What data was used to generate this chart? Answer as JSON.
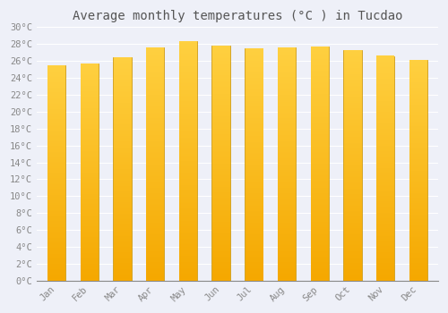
{
  "title": "Average monthly temperatures (°C ) in Tucdao",
  "months": [
    "Jan",
    "Feb",
    "Mar",
    "Apr",
    "May",
    "Jun",
    "Jul",
    "Aug",
    "Sep",
    "Oct",
    "Nov",
    "Dec"
  ],
  "values": [
    25.5,
    25.7,
    26.4,
    27.6,
    28.3,
    27.8,
    27.5,
    27.6,
    27.7,
    27.3,
    26.6,
    26.1
  ],
  "bar_color_top": "#FFD040",
  "bar_color_bottom": "#F5A800",
  "bar_edge_color": "#C8960A",
  "background_color": "#EEF0F8",
  "plot_bg_color": "#EEF0F8",
  "grid_color": "#FFFFFF",
  "ylim": [
    0,
    30
  ],
  "ytick_step": 2,
  "title_fontsize": 10,
  "tick_fontsize": 7.5,
  "tick_font_color": "#888888",
  "title_font_color": "#555555",
  "bar_width": 0.55
}
